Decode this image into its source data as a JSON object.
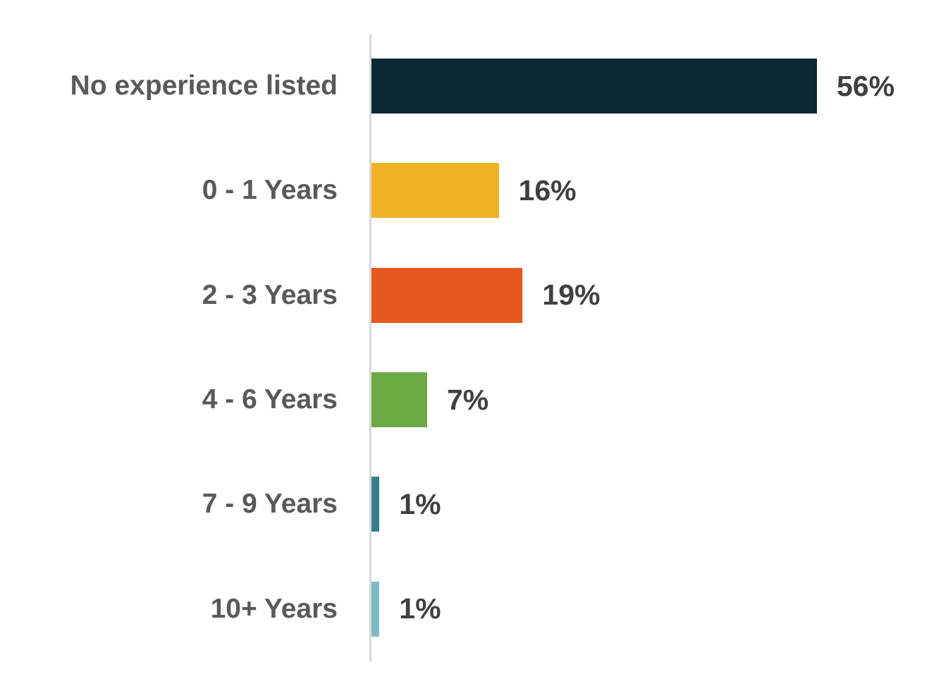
{
  "chart_data": {
    "type": "bar",
    "orientation": "horizontal",
    "title": "",
    "xlabel": "",
    "ylabel": "",
    "categories": [
      "No experience listed",
      "0 - 1 Years",
      "2 - 3 Years",
      "4 - 6 Years",
      "7 - 9 Years",
      "10+ Years"
    ],
    "values": [
      56,
      16,
      19,
      7,
      1,
      1
    ],
    "value_labels": [
      "56%",
      "16%",
      "19%",
      "7%",
      "1%",
      "1%"
    ],
    "bar_colors": [
      "#0B2A38",
      "#F0B224",
      "#E5571E",
      "#6BA944",
      "#367E8E",
      "#7FBAC3"
    ],
    "xlim": [
      0,
      70
    ],
    "grid": false,
    "legend": false,
    "axis_line_color": "#D9D9D9",
    "category_label_color": "#595959",
    "value_label_color": "#404040",
    "background": "#FFFFFF"
  }
}
